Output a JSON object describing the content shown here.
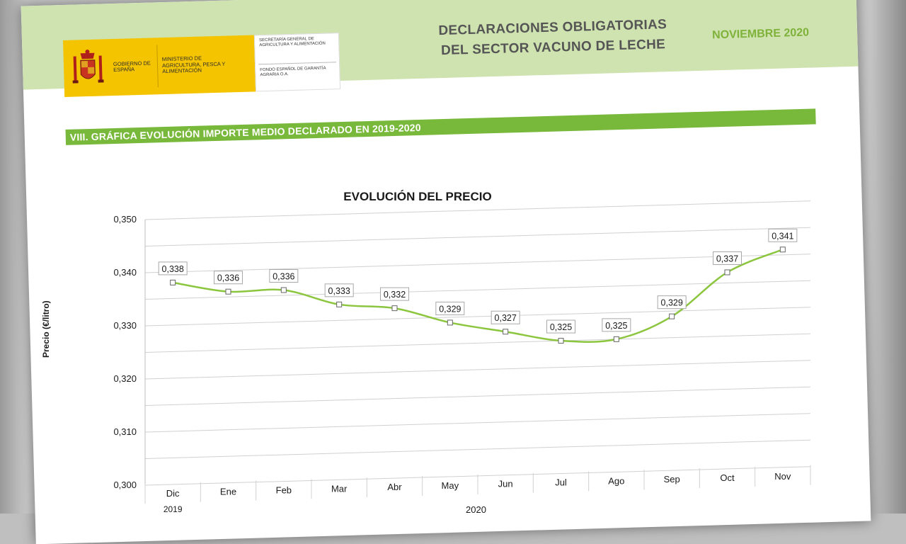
{
  "header": {
    "logo_gov": "GOBIERNO DE ESPAÑA",
    "logo_ministry": "MINISTERIO DE AGRICULTURA, PESCA Y ALIMENTACIÓN",
    "logo_secretariat": "SECRETARÍA GENERAL DE AGRICULTURA Y ALIMENTACIÓN",
    "logo_fund": "FONDO ESPAÑOL DE GARANTÍA AGRARIA O.A.",
    "title_line1": "DECLARACIONES OBLIGATORIAS",
    "title_line2": "DEL SECTOR VACUNO DE LECHE",
    "date": "NOVIEMBRE 2020"
  },
  "section": {
    "title": "VIII. GRÁFICA EVOLUCIÓN IMPORTE MEDIO DECLARADO EN 2019-2020"
  },
  "colors": {
    "header_band": "#cfe3b0",
    "section_bar": "#78b83a",
    "series_line": "#8cc63f",
    "logo_yellow": "#f5c400"
  },
  "chart_data": {
    "type": "line",
    "title": "EVOLUCIÓN DEL PRECIO",
    "xlabel": "2020",
    "ylabel": "Precio (€/litro)",
    "categories": [
      "Dic",
      "Ene",
      "Feb",
      "Mar",
      "Abr",
      "May",
      "Jun",
      "Jul",
      "Ago",
      "Sep",
      "Oct",
      "Nov"
    ],
    "category_sublabels": [
      "2019",
      "",
      "",
      "",
      "",
      "",
      "",
      "",
      "",
      "",
      "",
      ""
    ],
    "values": [
      0.338,
      0.336,
      0.336,
      0.333,
      0.332,
      0.329,
      0.327,
      0.325,
      0.325,
      0.329,
      0.337,
      0.341
    ],
    "data_labels": [
      "0,338",
      "0,336",
      "0,336",
      "0,333",
      "0,332",
      "0,329",
      "0,327",
      "0,325",
      "0,325",
      "0,329",
      "0,337",
      "0,341"
    ],
    "ylim": [
      0.3,
      0.35
    ],
    "yticks": [
      "0,300",
      "0,310",
      "0,320",
      "0,330",
      "0,340",
      "0,350"
    ],
    "grid": true,
    "legend": "none"
  }
}
